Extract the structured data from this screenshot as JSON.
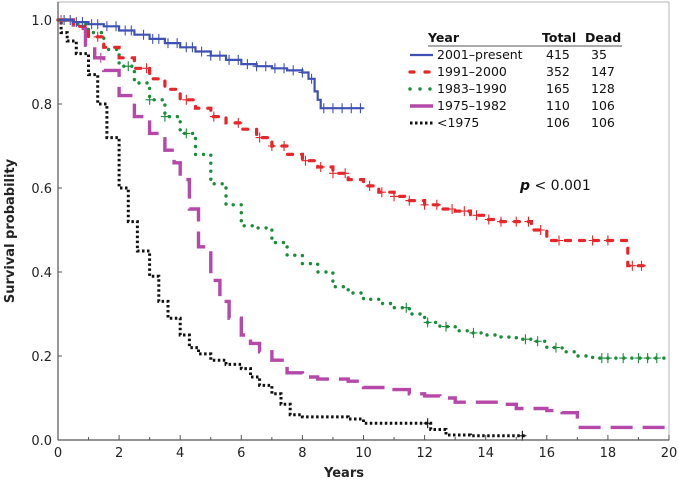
{
  "chart_data": {
    "type": "line",
    "subtype": "kaplan-meier-step",
    "title": "",
    "xlabel": "Years",
    "ylabel": "Survival probability",
    "xlim": [
      0,
      20
    ],
    "ylim": [
      0,
      1.0
    ],
    "x_ticks": [
      "0",
      "2",
      "4",
      "6",
      "8",
      "10",
      "12",
      "14",
      "16",
      "18",
      "20"
    ],
    "x_tick_values": [
      0,
      2,
      4,
      6,
      8,
      10,
      12,
      14,
      16,
      18,
      20
    ],
    "x_minor_tick_values": [
      1,
      3,
      5,
      7,
      9,
      11,
      13,
      15,
      17,
      19
    ],
    "y_ticks": [
      "0.0",
      "0.2",
      "0.4",
      "0.6",
      "0.8",
      "1.0"
    ],
    "y_tick_values": [
      0,
      0.2,
      0.4,
      0.6,
      0.8,
      1.0
    ],
    "grid": false,
    "legend": {
      "position": "top-right",
      "headers": [
        "Year",
        "Total",
        "Dead"
      ],
      "entries": [
        {
          "label": "2001–present",
          "total": "415",
          "dead": "35"
        },
        {
          "label": "1991–2000",
          "total": "352",
          "dead": "147"
        },
        {
          "label": "1983–1990",
          "total": "165",
          "dead": "128"
        },
        {
          "label": "1975–1982",
          "total": "110",
          "dead": "106"
        },
        {
          "label": "<1975",
          "total": "106",
          "dead": "106"
        }
      ]
    },
    "annotation": "p < 0.001",
    "annotation_italic_part": "p",
    "annotation_rest": " < 0.001",
    "series": [
      {
        "name": "2001–present",
        "color": "#3f51b5",
        "style": "solid",
        "x": [
          0,
          0.5,
          1.0,
          1.5,
          2.0,
          2.5,
          3.0,
          3.5,
          4.0,
          4.5,
          5.0,
          5.5,
          6.0,
          6.5,
          7.0,
          7.5,
          8.0,
          8.2,
          8.4,
          8.5,
          8.6,
          10.0
        ],
        "y": [
          1.0,
          0.995,
          0.99,
          0.985,
          0.975,
          0.965,
          0.955,
          0.945,
          0.935,
          0.925,
          0.915,
          0.905,
          0.895,
          0.89,
          0.885,
          0.88,
          0.875,
          0.86,
          0.83,
          0.81,
          0.79,
          0.79
        ],
        "censor_x": [
          0.2,
          0.4,
          0.6,
          0.8,
          1.1,
          1.3,
          1.6,
          1.9,
          2.2,
          2.4,
          2.8,
          3.1,
          3.3,
          3.6,
          3.9,
          4.2,
          4.4,
          4.7,
          5.0,
          5.3,
          5.6,
          5.9,
          6.2,
          6.5,
          6.8,
          7.1,
          7.4,
          7.7,
          8.0,
          8.3,
          8.7,
          9.0,
          9.3,
          9.6,
          9.9
        ]
      },
      {
        "name": "1991–2000",
        "color": "#e8262a",
        "style": "dashed",
        "x": [
          0,
          0.5,
          1.0,
          1.5,
          2.0,
          2.5,
          3.0,
          3.5,
          4.0,
          4.5,
          5.0,
          5.5,
          6.0,
          6.5,
          7.0,
          7.5,
          8.0,
          8.5,
          9.0,
          9.5,
          10.0,
          10.5,
          11.0,
          11.5,
          12.0,
          12.5,
          13.0,
          13.5,
          14.0,
          14.5,
          15.0,
          15.5,
          16.0,
          17.0,
          18.0,
          18.6,
          18.65,
          19.3
        ],
        "y": [
          1.0,
          0.985,
          0.96,
          0.935,
          0.91,
          0.885,
          0.86,
          0.835,
          0.81,
          0.79,
          0.77,
          0.755,
          0.74,
          0.72,
          0.7,
          0.68,
          0.665,
          0.65,
          0.635,
          0.62,
          0.605,
          0.59,
          0.58,
          0.57,
          0.56,
          0.55,
          0.545,
          0.535,
          0.525,
          0.52,
          0.52,
          0.5,
          0.475,
          0.475,
          0.475,
          0.475,
          0.415,
          0.415
        ],
        "censor_x": [
          1.3,
          2.9,
          4.2,
          5.1,
          5.9,
          6.6,
          7.0,
          7.4,
          8.1,
          8.6,
          9.0,
          9.4,
          10.2,
          10.6,
          11.0,
          11.5,
          12.0,
          12.4,
          12.9,
          13.3,
          13.7,
          14.1,
          14.5,
          15.0,
          15.4,
          15.8,
          16.4,
          17.5,
          18.0,
          18.8,
          19.1
        ]
      },
      {
        "name": "1983–1990",
        "color": "#1a8c3c",
        "style": "dotted",
        "x": [
          0,
          0.5,
          1.0,
          1.5,
          2.0,
          2.5,
          3.0,
          3.5,
          4.0,
          4.5,
          5.0,
          5.5,
          6.0,
          6.5,
          7.0,
          7.5,
          8.0,
          8.5,
          9.0,
          9.5,
          10.0,
          10.5,
          11.0,
          11.5,
          12.0,
          12.5,
          13.0,
          13.5,
          14.0,
          14.5,
          15.0,
          15.5,
          16.0,
          16.5,
          17.0,
          17.5,
          18.0,
          20.0
        ],
        "y": [
          1.0,
          0.99,
          0.97,
          0.93,
          0.89,
          0.85,
          0.81,
          0.77,
          0.73,
          0.68,
          0.61,
          0.56,
          0.51,
          0.505,
          0.47,
          0.44,
          0.42,
          0.4,
          0.365,
          0.35,
          0.335,
          0.325,
          0.315,
          0.3,
          0.28,
          0.27,
          0.26,
          0.255,
          0.25,
          0.245,
          0.24,
          0.235,
          0.22,
          0.21,
          0.2,
          0.195,
          0.195,
          0.195
        ],
        "censor_x": [
          2.3,
          3.0,
          3.5,
          4.2,
          11.4,
          12.1,
          12.7,
          13.6,
          15.3,
          15.7,
          16.3,
          17.8,
          18.0,
          18.5,
          19.0,
          19.3,
          19.6
        ]
      },
      {
        "name": "1975–1982",
        "color": "#b548a8",
        "style": "long-dash",
        "x": [
          0,
          0.5,
          0.9,
          1.2,
          1.5,
          2.0,
          2.5,
          3.0,
          3.5,
          3.8,
          4.0,
          4.3,
          4.6,
          5.0,
          5.3,
          5.6,
          6.0,
          6.3,
          6.6,
          7.0,
          7.5,
          8.0,
          8.5,
          9.0,
          9.5,
          10.0,
          11.0,
          11.5,
          12.0,
          12.5,
          13.0,
          14.0,
          14.5,
          15.0,
          16.0,
          16.5,
          17.0,
          20.0
        ],
        "y": [
          1.0,
          0.98,
          0.94,
          0.91,
          0.88,
          0.82,
          0.77,
          0.73,
          0.69,
          0.66,
          0.62,
          0.55,
          0.46,
          0.38,
          0.33,
          0.29,
          0.25,
          0.23,
          0.21,
          0.19,
          0.16,
          0.15,
          0.145,
          0.145,
          0.14,
          0.125,
          0.12,
          0.11,
          0.105,
          0.1,
          0.09,
          0.09,
          0.085,
          0.075,
          0.07,
          0.065,
          0.03,
          0.03
        ],
        "censor_x": [
          0.1,
          1.4
        ]
      },
      {
        "name": "<1975",
        "color": "#111111",
        "style": "dotted-dense",
        "x": [
          0,
          0.1,
          0.3,
          0.6,
          1.0,
          1.3,
          1.6,
          2.0,
          2.3,
          2.6,
          3.0,
          3.3,
          3.6,
          4.0,
          4.3,
          4.6,
          5.0,
          5.5,
          6.0,
          6.3,
          6.6,
          7.0,
          7.3,
          7.6,
          8.0,
          9.0,
          9.5,
          10.0,
          11.0,
          11.8,
          12.2,
          12.7,
          13.5,
          15.3
        ],
        "y": [
          1.0,
          0.97,
          0.95,
          0.92,
          0.87,
          0.8,
          0.72,
          0.6,
          0.52,
          0.45,
          0.39,
          0.33,
          0.29,
          0.25,
          0.22,
          0.205,
          0.19,
          0.18,
          0.17,
          0.15,
          0.13,
          0.11,
          0.085,
          0.06,
          0.055,
          0.055,
          0.05,
          0.04,
          0.04,
          0.04,
          0.025,
          0.012,
          0.01,
          0.01
        ],
        "censor_x": [
          12.1,
          15.2
        ]
      }
    ]
  }
}
